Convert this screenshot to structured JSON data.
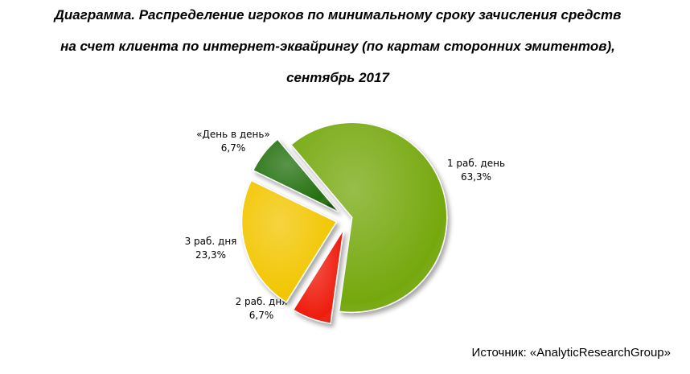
{
  "chart_data": {
    "type": "pie",
    "title": [
      "Диаграмма. Распределение игроков по минимальному сроку зачисления средств",
      "на счет клиента по интернет-эквайрингу (по картам сторонних эмитентов),",
      "сентябрь 2017"
    ],
    "categories": [
      "1 раб. день",
      "2 раб. дня",
      "3 раб. дня",
      "«День в день»"
    ],
    "values": [
      63.3,
      6.7,
      23.3,
      6.7
    ],
    "value_labels": [
      "63,3%",
      "6,7%",
      "23,3%",
      "6,7%"
    ],
    "colors": [
      "#74a80c",
      "#ee1a0c",
      "#f2c606",
      "#24700f"
    ],
    "source": "Источник: «AnalyticResearchGroup»"
  }
}
